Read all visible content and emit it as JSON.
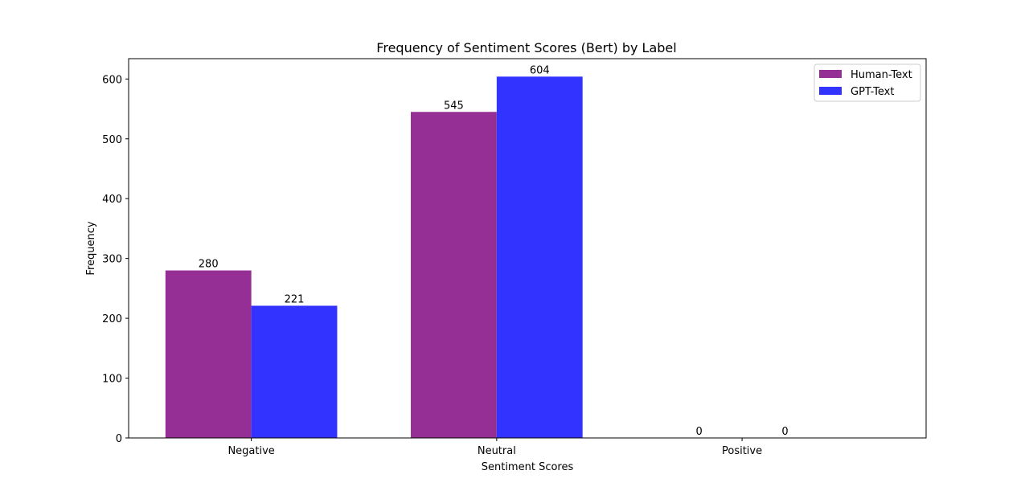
{
  "chart_data": {
    "type": "bar",
    "title": "Frequency of Sentiment Scores (Bert) by Label",
    "xlabel": "Sentiment Scores",
    "ylabel": "Frequency",
    "categories": [
      "Negative",
      "Neutral",
      "Positive"
    ],
    "series": [
      {
        "name": "Human-Text",
        "values": [
          280,
          545,
          0
        ],
        "color": "#952f95"
      },
      {
        "name": "GPT-Text",
        "values": [
          221,
          604,
          0
        ],
        "color": "#3333ff"
      }
    ],
    "ylim": [
      0,
      634
    ],
    "yticks": [
      0,
      100,
      200,
      300,
      400,
      500,
      600
    ],
    "grid": false,
    "legend_position": "top-right"
  }
}
